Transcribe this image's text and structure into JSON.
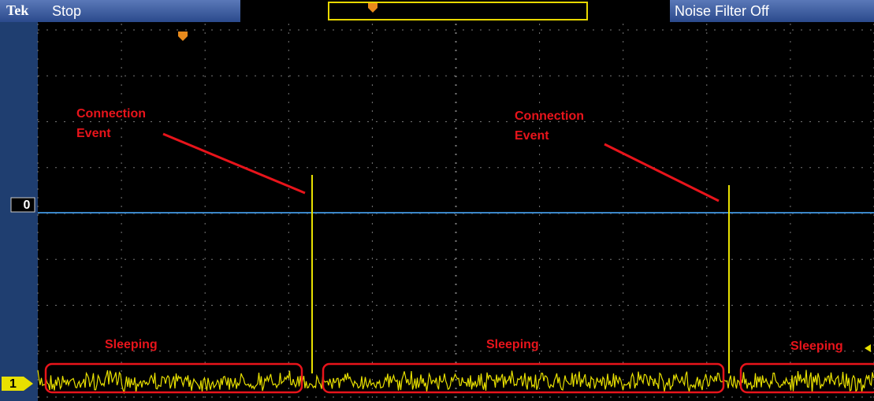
{
  "header": {
    "brand": "Tek",
    "status": "Stop",
    "filter": "Noise Filter Off"
  },
  "annotations": [
    {
      "lines": [
        "Connection",
        "Event"
      ]
    },
    {
      "lines": [
        "Connection",
        "Event"
      ]
    }
  ],
  "regions": [
    {
      "label": "Sleeping"
    },
    {
      "label": "Sleeping"
    },
    {
      "label": "Sleeping"
    }
  ],
  "markers": {
    "reference": "0",
    "channel": "1"
  }
}
